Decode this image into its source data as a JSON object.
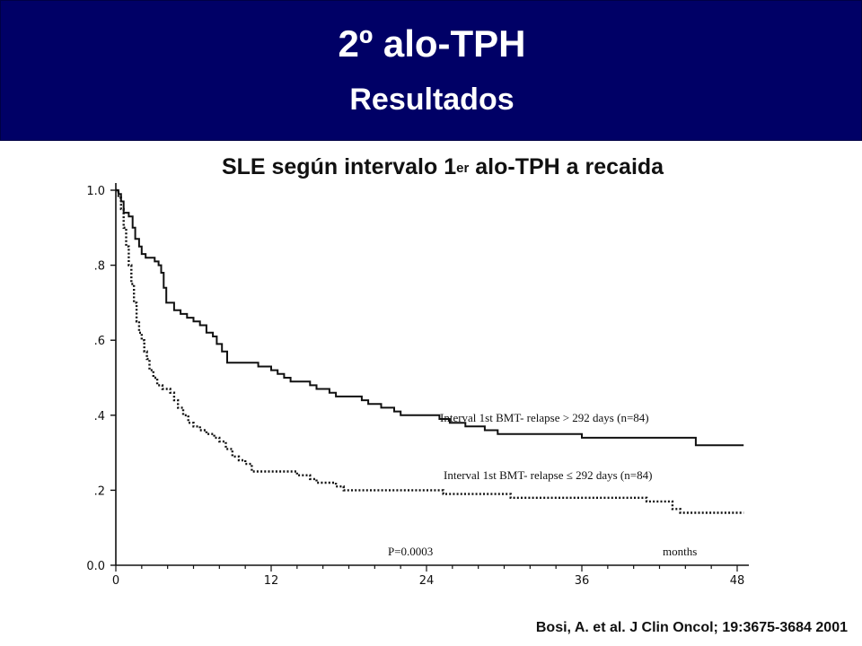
{
  "slide": {
    "title": "2º alo-TPH",
    "subtitle": "Resultados",
    "citation": "Bosi, A. et al. J Clin Oncol; 19:3675-3684 2001"
  },
  "chart_data": {
    "type": "line",
    "title_main": "SLE según intervalo 1",
    "title_sup": "er",
    "title_tail": " alo-TPH a recaida",
    "xlabel": "months",
    "ylabel": "",
    "xlim": [
      0,
      48
    ],
    "ylim": [
      0,
      1
    ],
    "x_ticks": [
      0,
      12,
      24,
      36,
      48
    ],
    "x_tick_labels": [
      "0",
      "12",
      "24",
      "36",
      "48"
    ],
    "y_ticks": [
      0,
      0.2,
      0.4,
      0.6,
      0.8,
      1.0
    ],
    "y_tick_labels": [
      "0.0",
      ".2",
      ".4",
      ".6",
      ".8",
      "1.0"
    ],
    "grid": false,
    "annotation": "P=0.0003",
    "series": [
      {
        "name": "Interval 1st BMT- relapse > 292 days (n=84)",
        "style": "solid",
        "color": "#111111",
        "step_points": [
          [
            0,
            1.0
          ],
          [
            0.2,
            0.99
          ],
          [
            0.4,
            0.97
          ],
          [
            0.6,
            0.94
          ],
          [
            1.0,
            0.93
          ],
          [
            1.3,
            0.9
          ],
          [
            1.5,
            0.87
          ],
          [
            1.8,
            0.85
          ],
          [
            2.0,
            0.83
          ],
          [
            2.3,
            0.82
          ],
          [
            3.0,
            0.81
          ],
          [
            3.3,
            0.8
          ],
          [
            3.5,
            0.78
          ],
          [
            3.7,
            0.74
          ],
          [
            3.9,
            0.7
          ],
          [
            4.5,
            0.68
          ],
          [
            5.0,
            0.67
          ],
          [
            5.5,
            0.66
          ],
          [
            6.0,
            0.65
          ],
          [
            6.5,
            0.64
          ],
          [
            7.0,
            0.62
          ],
          [
            7.5,
            0.61
          ],
          [
            7.8,
            0.59
          ],
          [
            8.2,
            0.57
          ],
          [
            8.6,
            0.54
          ],
          [
            10.5,
            0.54
          ],
          [
            11.0,
            0.53
          ],
          [
            12.0,
            0.52
          ],
          [
            12.5,
            0.51
          ],
          [
            13.0,
            0.5
          ],
          [
            13.5,
            0.49
          ],
          [
            15.0,
            0.48
          ],
          [
            15.5,
            0.47
          ],
          [
            16.5,
            0.46
          ],
          [
            17.0,
            0.45
          ],
          [
            19.0,
            0.44
          ],
          [
            19.5,
            0.43
          ],
          [
            20.5,
            0.42
          ],
          [
            21.5,
            0.41
          ],
          [
            22.0,
            0.4
          ],
          [
            25.0,
            0.39
          ],
          [
            25.8,
            0.38
          ],
          [
            27.0,
            0.37
          ],
          [
            28.5,
            0.36
          ],
          [
            29.5,
            0.35
          ],
          [
            36.0,
            0.34
          ],
          [
            36.3,
            0.34
          ],
          [
            44.5,
            0.34
          ],
          [
            44.8,
            0.32
          ],
          [
            48.5,
            0.32
          ]
        ]
      },
      {
        "name": "Interval 1st BMT- relapse ≤ 292 days (n=84)",
        "style": "dotted",
        "color": "#111111",
        "step_points": [
          [
            0,
            1.0
          ],
          [
            0.2,
            0.98
          ],
          [
            0.4,
            0.95
          ],
          [
            0.6,
            0.9
          ],
          [
            0.8,
            0.85
          ],
          [
            1.0,
            0.8
          ],
          [
            1.2,
            0.75
          ],
          [
            1.4,
            0.7
          ],
          [
            1.6,
            0.65
          ],
          [
            1.8,
            0.62
          ],
          [
            2.0,
            0.6
          ],
          [
            2.2,
            0.57
          ],
          [
            2.4,
            0.55
          ],
          [
            2.6,
            0.52
          ],
          [
            2.9,
            0.5
          ],
          [
            3.2,
            0.48
          ],
          [
            3.6,
            0.47
          ],
          [
            4.2,
            0.46
          ],
          [
            4.5,
            0.44
          ],
          [
            4.8,
            0.42
          ],
          [
            5.2,
            0.4
          ],
          [
            5.6,
            0.38
          ],
          [
            6.0,
            0.37
          ],
          [
            6.5,
            0.36
          ],
          [
            7.0,
            0.35
          ],
          [
            7.6,
            0.34
          ],
          [
            8.0,
            0.33
          ],
          [
            8.5,
            0.31
          ],
          [
            9.0,
            0.29
          ],
          [
            9.5,
            0.28
          ],
          [
            10.0,
            0.27
          ],
          [
            10.5,
            0.25
          ],
          [
            12.0,
            0.25
          ],
          [
            13.5,
            0.25
          ],
          [
            14.0,
            0.24
          ],
          [
            15.0,
            0.23
          ],
          [
            15.5,
            0.22
          ],
          [
            17.0,
            0.21
          ],
          [
            17.6,
            0.2
          ],
          [
            21.0,
            0.2
          ],
          [
            25.0,
            0.2
          ],
          [
            25.3,
            0.19
          ],
          [
            30.0,
            0.19
          ],
          [
            30.5,
            0.18
          ],
          [
            40.0,
            0.18
          ],
          [
            41.0,
            0.17
          ],
          [
            42.5,
            0.17
          ],
          [
            43.0,
            0.15
          ],
          [
            43.6,
            0.14
          ],
          [
            48.5,
            0.14
          ]
        ]
      }
    ]
  }
}
